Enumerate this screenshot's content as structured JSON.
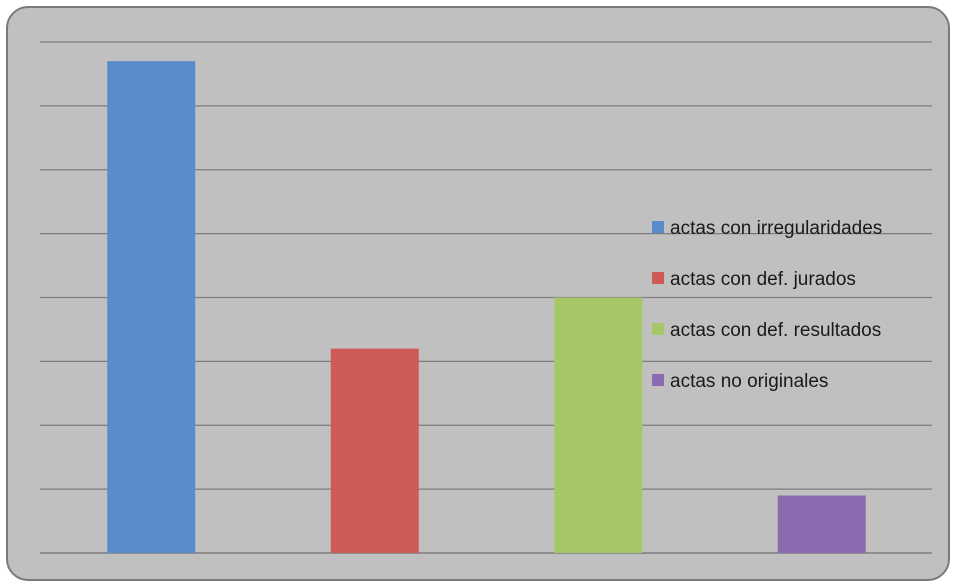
{
  "chart_data": {
    "type": "bar",
    "categories": [
      "actas con irregularidades",
      "actas con def. jurados",
      "actas con def. resultados",
      "actas no originales"
    ],
    "values": [
      7.7,
      3.2,
      4.0,
      0.9
    ],
    "ylim": [
      0,
      8
    ],
    "gridlines": 8,
    "grid": true,
    "legend_position": "right",
    "colors": [
      "#5a8ccc",
      "#cd5a55",
      "#a6c767",
      "#8a6bb0"
    ],
    "legend": [
      "actas con irregularidades",
      "actas con def. jurados",
      "actas con def. resultados",
      "actas no originales"
    ]
  }
}
